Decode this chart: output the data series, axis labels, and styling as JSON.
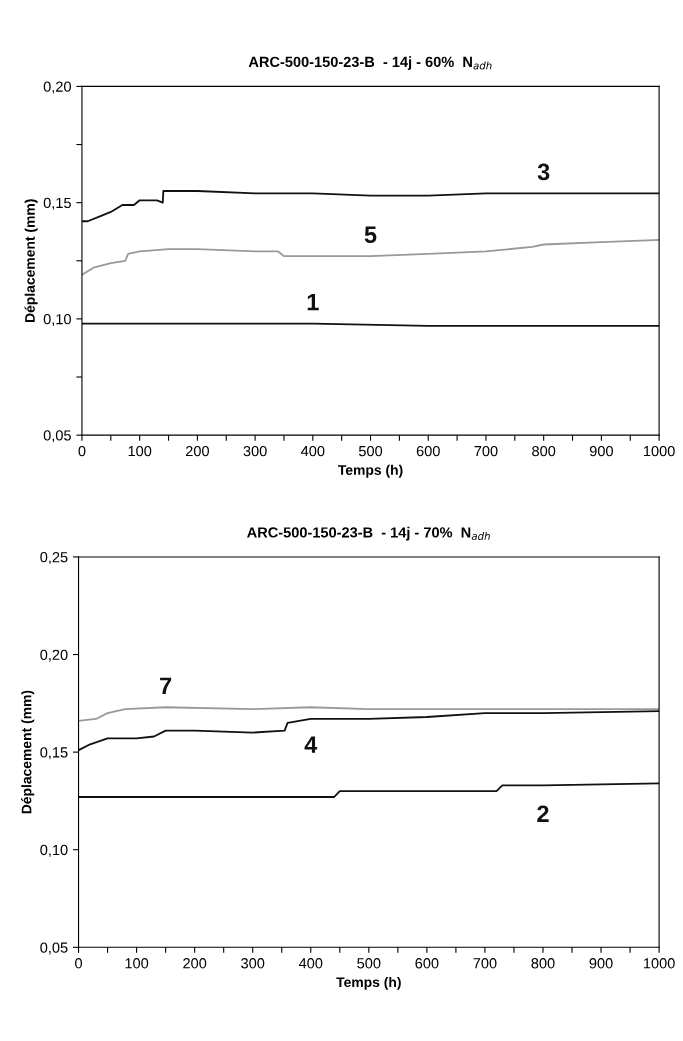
{
  "chart_data": [
    {
      "type": "line",
      "title": "ARC-500-150-23-B  - 14j - 60%  N$_{adh}$",
      "xlabel": "Temps (h)",
      "ylabel": "Déplacement (mm)",
      "xlim": [
        0,
        1000
      ],
      "xticks": [
        0,
        {
          "value": 50,
          "label": null
        },
        100,
        {
          "value": 150,
          "label": null
        },
        200,
        {
          "value": 250,
          "label": null
        },
        300,
        {
          "value": 350,
          "label": null
        },
        400,
        {
          "value": 450,
          "label": null
        },
        500,
        {
          "value": 550,
          "label": null
        },
        600,
        {
          "value": 650,
          "label": null
        },
        700,
        {
          "value": 750,
          "label": null
        },
        800,
        {
          "value": 850,
          "label": null
        },
        900,
        {
          "value": 950,
          "label": null
        },
        1000
      ],
      "ylim": [
        0.05,
        0.2
      ],
      "yticks": [
        {
          "value": 0.05,
          "label": "0,05"
        },
        {
          "value": 0.075,
          "label": null
        },
        {
          "value": 0.1,
          "label": "0,10"
        },
        {
          "value": 0.125,
          "label": null
        },
        {
          "value": 0.15,
          "label": "0,15"
        },
        {
          "value": 0.175,
          "label": null
        },
        {
          "value": 0.2,
          "label": "0,20"
        }
      ],
      "grid": false,
      "legend": false,
      "marker": "none",
      "line_style": "solid",
      "series": [
        {
          "name": "3",
          "color": "#111111",
          "x": [
            0,
            10,
            30,
            50,
            70,
            90,
            100,
            130,
            140,
            141,
            200,
            300,
            400,
            500,
            600,
            700,
            800,
            900,
            1000
          ],
          "values": [
            0.142,
            0.142,
            0.144,
            0.146,
            0.149,
            0.149,
            0.151,
            0.151,
            0.15,
            0.155,
            0.155,
            0.154,
            0.154,
            0.153,
            0.153,
            0.154,
            0.154,
            0.154,
            0.154
          ]
        },
        {
          "name": "5",
          "color": "#999999",
          "x": [
            0,
            20,
            50,
            75,
            80,
            100,
            150,
            200,
            300,
            340,
            350,
            400,
            500,
            600,
            700,
            780,
            800,
            900,
            1000
          ],
          "values": [
            0.119,
            0.122,
            0.124,
            0.125,
            0.128,
            0.129,
            0.13,
            0.13,
            0.129,
            0.129,
            0.127,
            0.127,
            0.127,
            0.128,
            0.129,
            0.131,
            0.132,
            0.133,
            0.134
          ]
        },
        {
          "name": "1",
          "color": "#111111",
          "x": [
            0,
            200,
            400,
            600,
            800,
            1000
          ],
          "values": [
            0.098,
            0.098,
            0.098,
            0.097,
            0.097,
            0.097
          ]
        }
      ]
    },
    {
      "type": "line",
      "title": "ARC-500-150-23-B  - 14j - 70%  N$_{adh}$",
      "xlabel": "Temps (h)",
      "ylabel": "Déplacement (mm)",
      "xlim": [
        0,
        1000
      ],
      "xticks": [
        0,
        {
          "value": 50,
          "label": null
        },
        100,
        {
          "value": 150,
          "label": null
        },
        200,
        {
          "value": 250,
          "label": null
        },
        300,
        {
          "value": 350,
          "label": null
        },
        400,
        {
          "value": 450,
          "label": null
        },
        500,
        {
          "value": 550,
          "label": null
        },
        600,
        {
          "value": 650,
          "label": null
        },
        700,
        {
          "value": 750,
          "label": null
        },
        800,
        {
          "value": 850,
          "label": null
        },
        900,
        {
          "value": 950,
          "label": null
        },
        1000
      ],
      "ylim": [
        0.05,
        0.25
      ],
      "yticks": [
        {
          "value": 0.05,
          "label": "0,05"
        },
        {
          "value": 0.1,
          "label": "0,10"
        },
        {
          "value": 0.15,
          "label": "0,15"
        },
        {
          "value": 0.2,
          "label": "0,20"
        },
        {
          "value": 0.25,
          "label": "0,25"
        }
      ],
      "grid": false,
      "legend": false,
      "marker": "none",
      "line_style": "solid",
      "series": [
        {
          "name": "7",
          "color": "#999999",
          "x": [
            0,
            30,
            50,
            80,
            150,
            300,
            400,
            500,
            700,
            900,
            1000
          ],
          "values": [
            0.166,
            0.167,
            0.17,
            0.172,
            0.173,
            0.172,
            0.173,
            0.172,
            0.172,
            0.172,
            0.172
          ]
        },
        {
          "name": "4",
          "color": "#111111",
          "x": [
            0,
            20,
            50,
            100,
            130,
            150,
            200,
            300,
            355,
            360,
            400,
            500,
            600,
            700,
            800,
            1000
          ],
          "values": [
            0.151,
            0.154,
            0.157,
            0.157,
            0.158,
            0.161,
            0.161,
            0.16,
            0.161,
            0.165,
            0.167,
            0.167,
            0.168,
            0.17,
            0.17,
            0.171
          ]
        },
        {
          "name": "2",
          "color": "#111111",
          "x": [
            0,
            300,
            440,
            450,
            600,
            720,
            730,
            800,
            1000
          ],
          "values": [
            0.127,
            0.127,
            0.127,
            0.13,
            0.13,
            0.13,
            0.133,
            0.133,
            0.134
          ]
        }
      ]
    }
  ]
}
